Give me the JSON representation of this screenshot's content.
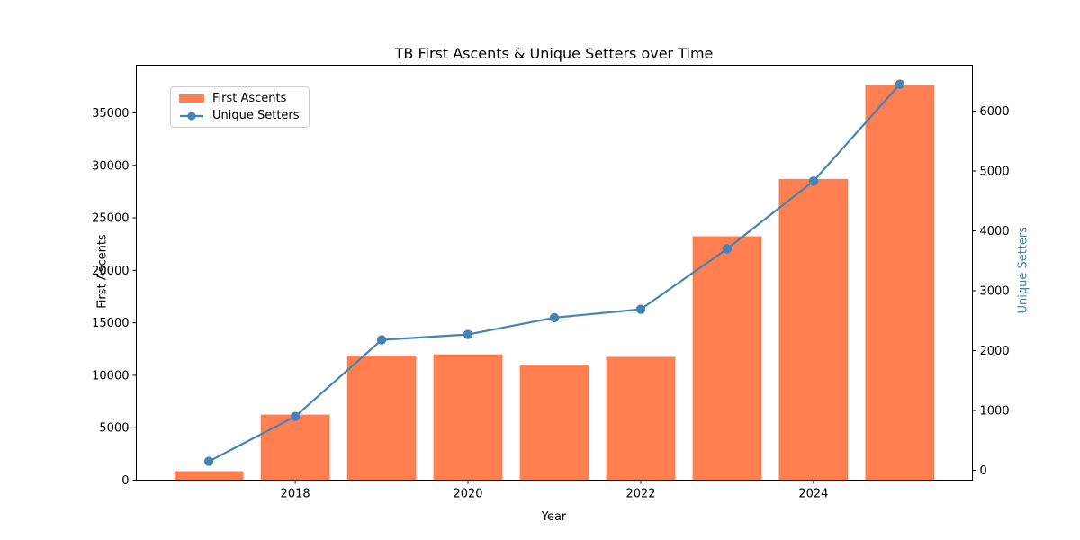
{
  "figure": {
    "title": "TB First Ascents & Unique Setters over Time"
  },
  "chart_data": {
    "type": "combo",
    "title": "TB First Ascents & Unique Setters over Time",
    "xlabel": "Year",
    "ylabel_left": "First Ascents",
    "ylabel_right": "Unique Setters",
    "x": [
      2017,
      2018,
      2019,
      2020,
      2021,
      2022,
      2023,
      2024,
      2025
    ],
    "series": [
      {
        "name": "First Ascents",
        "type": "bar",
        "axis": "left",
        "values": [
          860,
          6250,
          11900,
          12000,
          11000,
          11750,
          23250,
          28700,
          37650
        ]
      },
      {
        "name": "Unique Setters",
        "type": "line",
        "axis": "right",
        "values": [
          150,
          900,
          2180,
          2270,
          2550,
          2690,
          3700,
          4830,
          6450
        ]
      }
    ],
    "bar_width": 0.8,
    "xlim": [
      2016.16,
      2025.84
    ],
    "ylim_left": [
      0,
      39545
    ],
    "ylim_right": [
      -165,
      6767
    ],
    "x_ticks": [
      2018,
      2020,
      2022,
      2024
    ],
    "y_ticks_left": [
      0,
      5000,
      10000,
      15000,
      20000,
      25000,
      30000,
      35000
    ],
    "y_ticks_right": [
      0,
      1000,
      2000,
      3000,
      4000,
      5000,
      6000
    ],
    "grid": false,
    "legend_position": "upper left",
    "colors": {
      "bar": "#ff7f50",
      "line": "#4682b4",
      "right_axis_label": "#4682b4",
      "spine": "#000000",
      "legend_border": "#cccccc"
    }
  }
}
